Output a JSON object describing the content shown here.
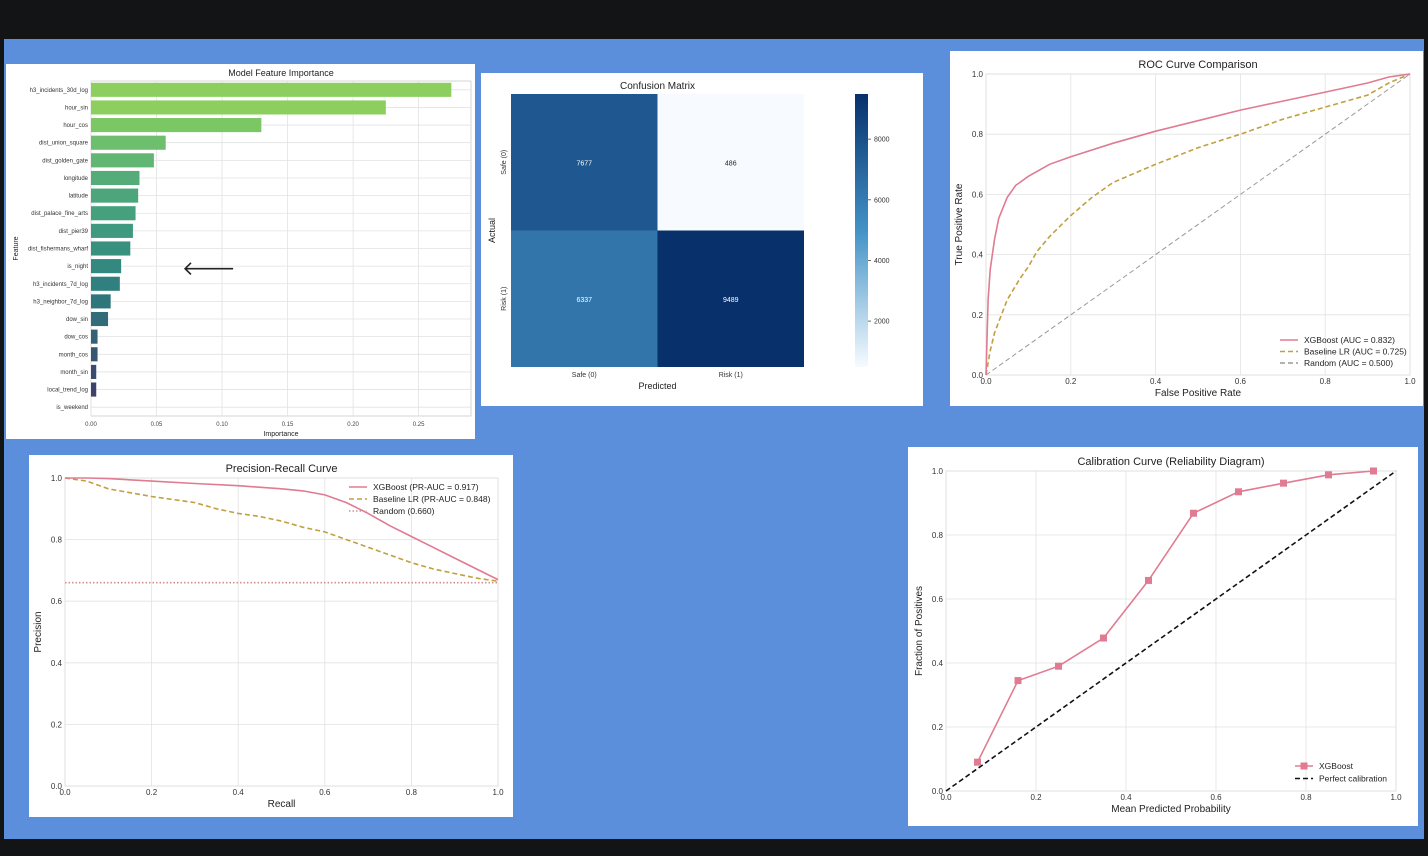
{
  "colors": {
    "background": "#5b8edb",
    "top_bar": "#121416",
    "xgboost": "#e07b91",
    "baseline": "#c0a040",
    "random": "#999999"
  },
  "cursor_glyph": "🡐",
  "chart_data": [
    {
      "id": "feature-importance",
      "type": "bar",
      "orientation": "horizontal",
      "title": "Model Feature Importance",
      "xlabel": "Importance",
      "ylabel": "Feature",
      "xlim": [
        0,
        0.29
      ],
      "xticks": [
        "0.00",
        "0.05",
        "0.10",
        "0.15",
        "0.20",
        "0.25"
      ],
      "grid": true,
      "categories": [
        "h3_incidents_30d_log",
        "hour_sin",
        "hour_cos",
        "dist_union_square",
        "dist_golden_gate",
        "longitude",
        "latitude",
        "dist_palace_fine_arts",
        "dist_pier39",
        "dist_fishermans_wharf",
        "is_night",
        "h3_incidents_7d_log",
        "h3_neighbor_7d_log",
        "dow_sin",
        "dow_cos",
        "month_cos",
        "month_sin",
        "local_trend_log",
        "is_weekend"
      ],
      "values": [
        0.275,
        0.225,
        0.13,
        0.057,
        0.048,
        0.037,
        0.036,
        0.034,
        0.032,
        0.03,
        0.023,
        0.022,
        0.015,
        0.013,
        0.005,
        0.005,
        0.004,
        0.004,
        0.0
      ],
      "bar_colors": [
        "#8ccf5f",
        "#8ccf5f",
        "#7bc764",
        "#6dbf6d",
        "#62b673",
        "#56ac78",
        "#4ca57b",
        "#45a07d",
        "#3e997e",
        "#38917f",
        "#33897f",
        "#2f807e",
        "#2f757c",
        "#326b79",
        "#346177",
        "#365673",
        "#384c70",
        "#3a426d",
        "#3a3a69"
      ]
    },
    {
      "id": "confusion-matrix",
      "type": "heatmap",
      "title": "Confusion Matrix",
      "xlabel": "Predicted",
      "ylabel": "Actual",
      "x_categories": [
        "Safe (0)",
        "Risk (1)"
      ],
      "y_categories": [
        "Safe (0)",
        "Risk (1)"
      ],
      "values": [
        [
          7677,
          486
        ],
        [
          6337,
          9489
        ]
      ],
      "colorbar_ticks": [
        "2000",
        "4000",
        "6000",
        "8000"
      ],
      "color_range": [
        486,
        9489
      ]
    },
    {
      "id": "roc-curve",
      "type": "line",
      "title": "ROC Curve Comparison",
      "xlabel": "False Positive Rate",
      "ylabel": "True Positive Rate",
      "xlim": [
        0,
        1
      ],
      "ylim": [
        0,
        1
      ],
      "ticks": [
        "0.0",
        "0.2",
        "0.4",
        "0.6",
        "0.8",
        "1.0"
      ],
      "grid": true,
      "legend_position": "bottom-right",
      "series": [
        {
          "name": "XGBoost (AUC = 0.832)",
          "style": "solid",
          "color": "#e07b91",
          "x": [
            0,
            0.005,
            0.01,
            0.02,
            0.03,
            0.05,
            0.07,
            0.1,
            0.15,
            0.2,
            0.3,
            0.4,
            0.5,
            0.6,
            0.7,
            0.8,
            0.9,
            0.95,
            1.0
          ],
          "y": [
            0,
            0.25,
            0.35,
            0.45,
            0.52,
            0.59,
            0.63,
            0.66,
            0.7,
            0.725,
            0.77,
            0.81,
            0.845,
            0.88,
            0.91,
            0.94,
            0.97,
            0.99,
            1.0
          ]
        },
        {
          "name": "Baseline LR (AUC = 0.725)",
          "style": "dashed",
          "color": "#c0a040",
          "x": [
            0,
            0.01,
            0.02,
            0.05,
            0.08,
            0.1,
            0.12,
            0.15,
            0.2,
            0.25,
            0.3,
            0.4,
            0.5,
            0.6,
            0.7,
            0.8,
            0.9,
            0.95,
            1.0
          ],
          "y": [
            0,
            0.08,
            0.14,
            0.25,
            0.32,
            0.36,
            0.41,
            0.46,
            0.53,
            0.59,
            0.64,
            0.7,
            0.755,
            0.8,
            0.85,
            0.89,
            0.93,
            0.97,
            1.0
          ]
        },
        {
          "name": "Random (AUC = 0.500)",
          "style": "dashed",
          "color": "#999999",
          "x": [
            0,
            1
          ],
          "y": [
            0,
            1
          ]
        }
      ]
    },
    {
      "id": "pr-curve",
      "type": "line",
      "title": "Precision-Recall Curve",
      "xlabel": "Recall",
      "ylabel": "Precision",
      "xlim": [
        0,
        1
      ],
      "ylim": [
        0,
        1
      ],
      "ticks": [
        "0.0",
        "0.2",
        "0.4",
        "0.6",
        "0.8",
        "1.0"
      ],
      "grid": true,
      "legend_position": "top-right",
      "series": [
        {
          "name": "XGBoost (PR-AUC = 0.917)",
          "style": "solid",
          "color": "#e07b91",
          "x": [
            0,
            0.05,
            0.1,
            0.2,
            0.3,
            0.4,
            0.5,
            0.55,
            0.6,
            0.65,
            0.7,
            0.75,
            0.8,
            0.85,
            0.9,
            0.95,
            1.0
          ],
          "y": [
            1.0,
            1.0,
            0.998,
            0.99,
            0.982,
            0.975,
            0.965,
            0.958,
            0.945,
            0.92,
            0.885,
            0.845,
            0.81,
            0.775,
            0.74,
            0.705,
            0.67
          ]
        },
        {
          "name": "Baseline LR (PR-AUC = 0.848)",
          "style": "dashed",
          "color": "#c0a040",
          "x": [
            0,
            0.05,
            0.1,
            0.2,
            0.3,
            0.35,
            0.4,
            0.45,
            0.5,
            0.55,
            0.6,
            0.65,
            0.7,
            0.75,
            0.8,
            0.85,
            0.9,
            0.95,
            1.0
          ],
          "y": [
            1.0,
            0.99,
            0.965,
            0.94,
            0.92,
            0.9,
            0.885,
            0.875,
            0.86,
            0.84,
            0.825,
            0.8,
            0.775,
            0.75,
            0.725,
            0.705,
            0.69,
            0.675,
            0.665
          ]
        },
        {
          "name": "Random (0.660)",
          "style": "dotted",
          "color": "#d09090",
          "x": [
            0,
            1
          ],
          "y": [
            0.66,
            0.66
          ]
        }
      ]
    },
    {
      "id": "calibration-curve",
      "type": "line",
      "title": "Calibration Curve (Reliability Diagram)",
      "xlabel": "Mean Predicted Probability",
      "ylabel": "Fraction of Positives",
      "xlim": [
        0,
        1
      ],
      "ylim": [
        0,
        1
      ],
      "ticks": [
        "0.0",
        "0.2",
        "0.4",
        "0.6",
        "0.8",
        "1.0"
      ],
      "grid": true,
      "legend_position": "bottom-right",
      "series": [
        {
          "name": "XGBoost",
          "style": "solid-square-markers",
          "color": "#e07b91",
          "x": [
            0.07,
            0.16,
            0.25,
            0.35,
            0.45,
            0.55,
            0.65,
            0.75,
            0.85,
            0.95
          ],
          "y": [
            0.09,
            0.345,
            0.39,
            0.478,
            0.658,
            0.868,
            0.935,
            0.962,
            0.988,
            1.0
          ]
        },
        {
          "name": "Perfect calibration",
          "style": "dashed",
          "color": "#111111",
          "x": [
            0,
            1
          ],
          "y": [
            0,
            1
          ]
        }
      ]
    }
  ]
}
